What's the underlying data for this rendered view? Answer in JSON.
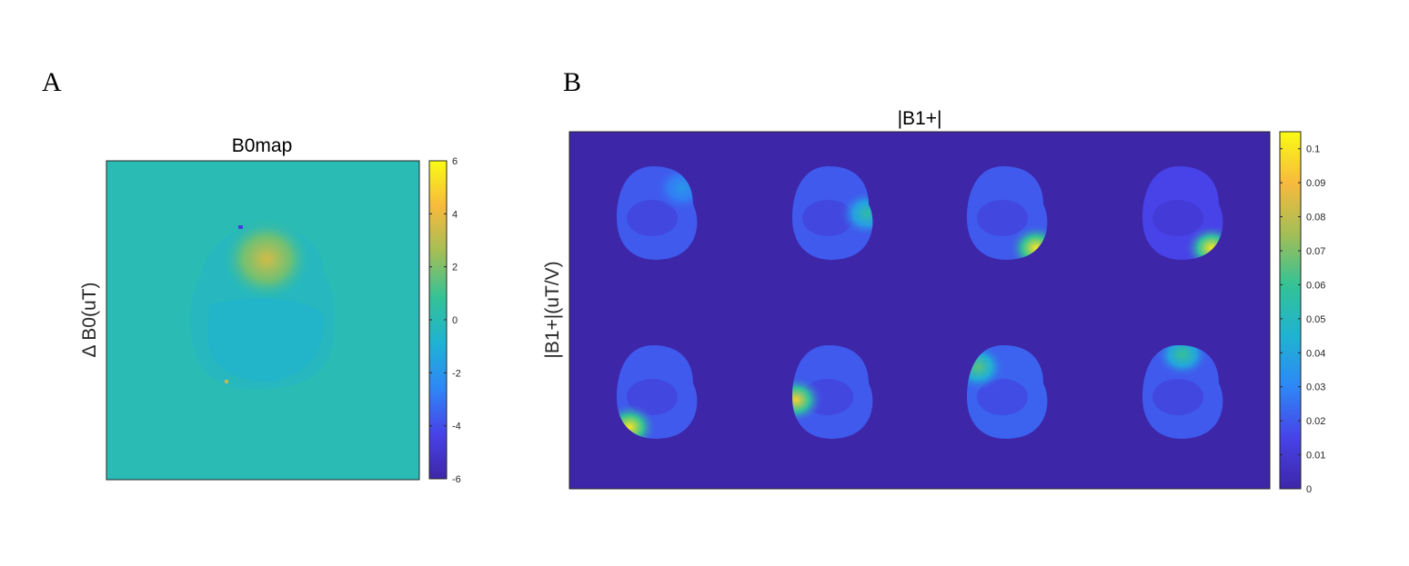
{
  "figure": {
    "panel_a_letter": "A",
    "panel_b_letter": "B"
  },
  "colormap": [
    "#3e26a8",
    "#4743e8",
    "#2e87f6",
    "#1fb3d2",
    "#34c295",
    "#a4be56",
    "#f8ba3d",
    "#f9fb15"
  ],
  "chart_data": [
    {
      "type": "heatmap",
      "title": "B0map",
      "ylabel": "Δ B0(uT)",
      "xlabel": "",
      "colorbar": {
        "range": [
          -6,
          6
        ],
        "ticks": [
          6,
          4,
          2,
          0,
          -2,
          -4,
          -6
        ],
        "tick_labels": [
          "6",
          "4",
          "2",
          "0",
          "-2",
          "-4",
          "-6"
        ]
      },
      "background_value": 0,
      "brain_mean_value": -0.3,
      "hotspot": {
        "location": "frontal",
        "peak_value": 3.5
      },
      "color_samples": [
        {
          "region": "background",
          "value": 0,
          "color": "#13bdb8"
        },
        {
          "region": "brain body",
          "value": -0.3,
          "color": "#1fb3d2"
        },
        {
          "region": "frontal hotspot",
          "value": 3.5,
          "color": "#e5ad2e"
        }
      ]
    },
    {
      "type": "heatmap",
      "title": "|B1+|",
      "ylabel": "|B1+|(uT/V)",
      "xlabel": "",
      "colorbar": {
        "range": [
          0,
          0.105
        ],
        "ticks": [
          0.1,
          0.09,
          0.08,
          0.07,
          0.06,
          0.05,
          0.04,
          0.03,
          0.02,
          0.01,
          0
        ],
        "tick_labels": [
          "0.1",
          "0.09",
          "0.08",
          "0.07",
          "0.06",
          "0.05",
          "0.04",
          "0.03",
          "0.02",
          "0.01",
          "0"
        ]
      },
      "layout": "2 rows x 4 columns of channel maps",
      "background_value": 0,
      "channels": [
        {
          "channel": 1,
          "row": 1,
          "col": 1,
          "mean_value": 0.02,
          "hotspot": {
            "location": "top-right",
            "peak_value": 0.035
          }
        },
        {
          "channel": 2,
          "row": 1,
          "col": 2,
          "mean_value": 0.02,
          "hotspot": {
            "location": "right",
            "peak_value": 0.055
          }
        },
        {
          "channel": 3,
          "row": 1,
          "col": 3,
          "mean_value": 0.02,
          "hotspot": {
            "location": "bottom-right",
            "peak_value": 0.1
          }
        },
        {
          "channel": 4,
          "row": 1,
          "col": 4,
          "mean_value": 0.015,
          "hotspot": {
            "location": "bottom-right",
            "peak_value": 0.1
          }
        },
        {
          "channel": 5,
          "row": 2,
          "col": 1,
          "mean_value": 0.02,
          "hotspot": {
            "location": "bottom-left",
            "peak_value": 0.1
          }
        },
        {
          "channel": 6,
          "row": 2,
          "col": 2,
          "mean_value": 0.02,
          "hotspot": {
            "location": "left",
            "peak_value": 0.095
          }
        },
        {
          "channel": 7,
          "row": 2,
          "col": 3,
          "mean_value": 0.022,
          "hotspot": {
            "location": "top-left",
            "peak_value": 0.065
          }
        },
        {
          "channel": 8,
          "row": 2,
          "col": 4,
          "mean_value": 0.02,
          "hotspot": {
            "location": "top",
            "peak_value": 0.06
          }
        }
      ]
    }
  ]
}
